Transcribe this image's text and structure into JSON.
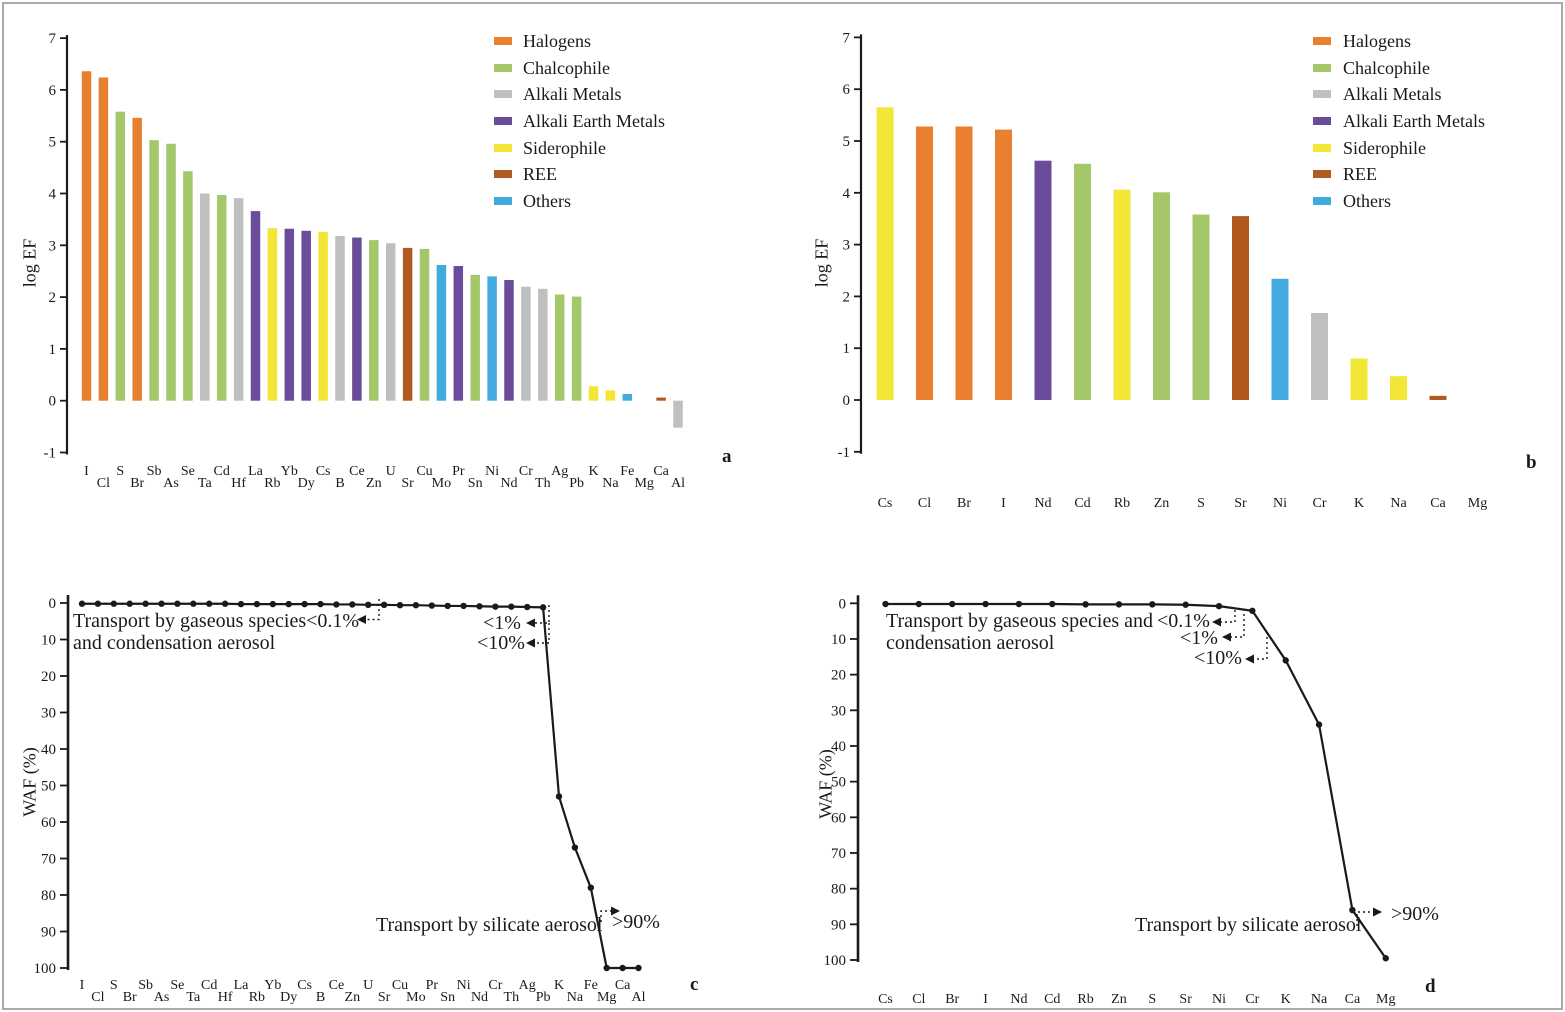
{
  "legend": {
    "items": [
      {
        "label": "Halogens",
        "color": "#E8802F"
      },
      {
        "label": "Chalcophile",
        "color": "#A4C869"
      },
      {
        "label": "Alkali Metals",
        "color": "#BFBFBF"
      },
      {
        "label": "Alkali Earth Metals",
        "color": "#6B4C9B"
      },
      {
        "label": "Siderophile",
        "color": "#F2E636"
      },
      {
        "label": "REE",
        "color": "#B05A20"
      },
      {
        "label": "Others",
        "color": "#41AADF"
      }
    ]
  },
  "chart_data": [
    {
      "id": "a",
      "letter": "a",
      "type": "bar",
      "title": "",
      "ylabel": "log EF",
      "ylim": [
        -1,
        7
      ],
      "yticks": [
        7,
        6,
        5,
        4,
        3,
        2,
        1,
        0,
        -1
      ],
      "categories": [
        "I",
        "Cl",
        "S",
        "Br",
        "Sb",
        "As",
        "Se",
        "Ta",
        "Cd",
        "Hf",
        "La",
        "Rb",
        "Yb",
        "Dy",
        "Cs",
        "B",
        "Ce",
        "Zn",
        "U",
        "Sr",
        "Cu",
        "Mo",
        "Pr",
        "Sn",
        "Ni",
        "Nd",
        "Cr",
        "Th",
        "Ag",
        "Pb",
        "K",
        "Na",
        "Fe",
        "Mg",
        "Ca",
        "Al"
      ],
      "values": [
        6.36,
        6.24,
        5.58,
        5.46,
        5.03,
        4.96,
        4.43,
        4.0,
        3.97,
        3.91,
        3.66,
        3.33,
        3.32,
        3.28,
        3.26,
        3.18,
        3.15,
        3.1,
        3.04,
        2.95,
        2.93,
        2.62,
        2.6,
        2.43,
        2.4,
        2.33,
        2.2,
        2.16,
        2.05,
        2.01,
        0.28,
        0.2,
        0.13,
        0.0,
        0.06,
        -0.52
      ],
      "groups": [
        "Halogens",
        "Halogens",
        "Chalcophile",
        "Halogens",
        "Chalcophile",
        "Chalcophile",
        "Chalcophile",
        "Alkali Metals",
        "Chalcophile",
        "Alkali Metals",
        "Alkali Earth Metals",
        "Siderophile",
        "Alkali Earth Metals",
        "Alkali Earth Metals",
        "Siderophile",
        "Alkali Metals",
        "Alkali Earth Metals",
        "Chalcophile",
        "Alkali Metals",
        "REE",
        "Chalcophile",
        "Others",
        "Alkali Earth Metals",
        "Chalcophile",
        "Others",
        "Alkali Earth Metals",
        "Alkali Metals",
        "Alkali Metals",
        "Chalcophile",
        "Chalcophile",
        "Siderophile",
        "Siderophile",
        "Others",
        "",
        "REE",
        "Alkali Metals"
      ]
    },
    {
      "id": "b",
      "letter": "b",
      "type": "bar",
      "title": "",
      "ylabel": "log EF",
      "ylim": [
        -1,
        7
      ],
      "yticks": [
        7,
        6,
        5,
        4,
        3,
        2,
        1,
        0,
        -1
      ],
      "categories": [
        "Cs",
        "Cl",
        "Br",
        "I",
        "Nd",
        "Cd",
        "Rb",
        "Zn",
        "S",
        "Sr",
        "Ni",
        "Cr",
        "K",
        "Na",
        "Ca",
        "Mg"
      ],
      "values": [
        5.65,
        5.28,
        5.28,
        5.22,
        4.62,
        4.56,
        4.06,
        4.01,
        3.58,
        3.55,
        2.34,
        1.68,
        0.8,
        0.46,
        0.08,
        0.0
      ],
      "groups": [
        "Siderophile",
        "Halogens",
        "Halogens",
        "Halogens",
        "Alkali Earth Metals",
        "Chalcophile",
        "Siderophile",
        "Chalcophile",
        "Chalcophile",
        "REE",
        "Others",
        "Alkali Metals",
        "Siderophile",
        "Siderophile",
        "REE",
        ""
      ]
    },
    {
      "id": "c",
      "letter": "c",
      "type": "line",
      "title": "",
      "ylabel": "WAF (%)",
      "ylim": [
        0,
        100
      ],
      "y_inverted": true,
      "yticks": [
        0,
        10,
        20,
        30,
        40,
        50,
        60,
        70,
        80,
        90,
        100
      ],
      "categories": [
        "I",
        "Cl",
        "S",
        "Br",
        "Sb",
        "As",
        "Se",
        "Ta",
        "Cd",
        "Hf",
        "La",
        "Rb",
        "Yb",
        "Dy",
        "Cs",
        "B",
        "Ce",
        "Zn",
        "U",
        "Sr",
        "Cu",
        "Mo",
        "Pr",
        "Sn",
        "Ni",
        "Nd",
        "Cr",
        "Th",
        "Ag",
        "Pb",
        "K",
        "Na",
        "Fe",
        "Mg",
        "Ca",
        "Al"
      ],
      "values": [
        0.2,
        0.2,
        0.2,
        0.2,
        0.2,
        0.2,
        0.2,
        0.2,
        0.2,
        0.2,
        0.3,
        0.3,
        0.3,
        0.3,
        0.3,
        0.3,
        0.4,
        0.4,
        0.5,
        0.5,
        0.6,
        0.6,
        0.7,
        0.8,
        0.8,
        0.9,
        1.0,
        1.0,
        1.1,
        1.2,
        53,
        67,
        78,
        100,
        100,
        100
      ],
      "annotations": {
        "gaseous_line1": "Transport by gaseous species<0.1%",
        "gaseous_line2": "and condensation aerosol",
        "lt1": "<1%",
        "lt10": "<10%",
        "silicate": "Transport by silicate aerosol",
        "gt90": ">90%"
      }
    },
    {
      "id": "d",
      "letter": "d",
      "type": "line",
      "title": "",
      "ylabel": "WAF (%)",
      "ylim": [
        0,
        100
      ],
      "y_inverted": true,
      "yticks": [
        0,
        10,
        20,
        30,
        40,
        50,
        60,
        70,
        80,
        90,
        100
      ],
      "categories": [
        "Cs",
        "Cl",
        "Br",
        "I",
        "Nd",
        "Cd",
        "Rb",
        "Zn",
        "S",
        "Sr",
        "Ni",
        "Cr",
        "K",
        "Na",
        "Ca",
        "Mg"
      ],
      "values": [
        0.2,
        0.2,
        0.2,
        0.2,
        0.2,
        0.2,
        0.3,
        0.3,
        0.3,
        0.4,
        0.8,
        2.1,
        16,
        34,
        86,
        99.5
      ],
      "annotations": {
        "gaseous_line1": "Transport by gaseous species and",
        "gaseous_line2": "condensation aerosol",
        "lt01": "<0.1%",
        "lt1": "<1%",
        "lt10": "<10%",
        "silicate": "Transport by silicate aerosol",
        "gt90": ">90%"
      }
    }
  ]
}
